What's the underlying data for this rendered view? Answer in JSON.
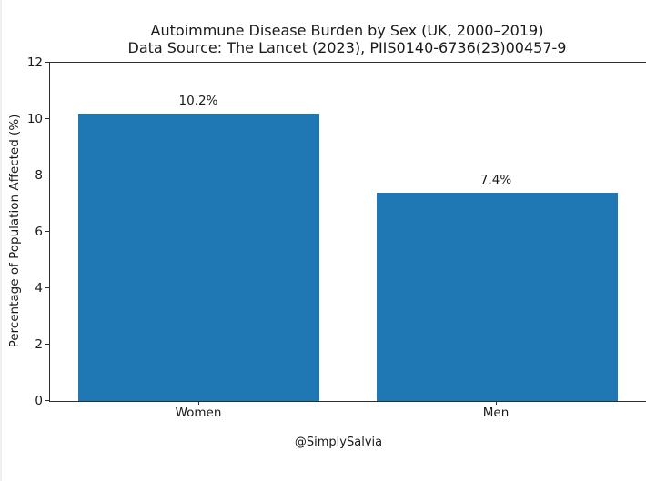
{
  "chart_data": {
    "type": "bar",
    "title": "Autoimmune Disease Burden by Sex (UK, 2000–2019)",
    "subtitle": "Data Source: The Lancet (2023), PIIS0140-6736(23)00457-9",
    "categories": [
      "Women",
      "Men"
    ],
    "values": [
      10.2,
      7.4
    ],
    "bar_labels": [
      "10.2%",
      "7.4%"
    ],
    "xlabel": "",
    "ylabel": "Percentage of Population Affected (%)",
    "ylim": [
      0,
      12
    ],
    "yticks": [
      0,
      2,
      4,
      6,
      8,
      10,
      12
    ],
    "bar_color": "#1f77b4",
    "axis_color": "#2e2e2e",
    "grid": false,
    "legend": "none"
  },
  "footer": {
    "handle": "@SimplySalvia"
  }
}
